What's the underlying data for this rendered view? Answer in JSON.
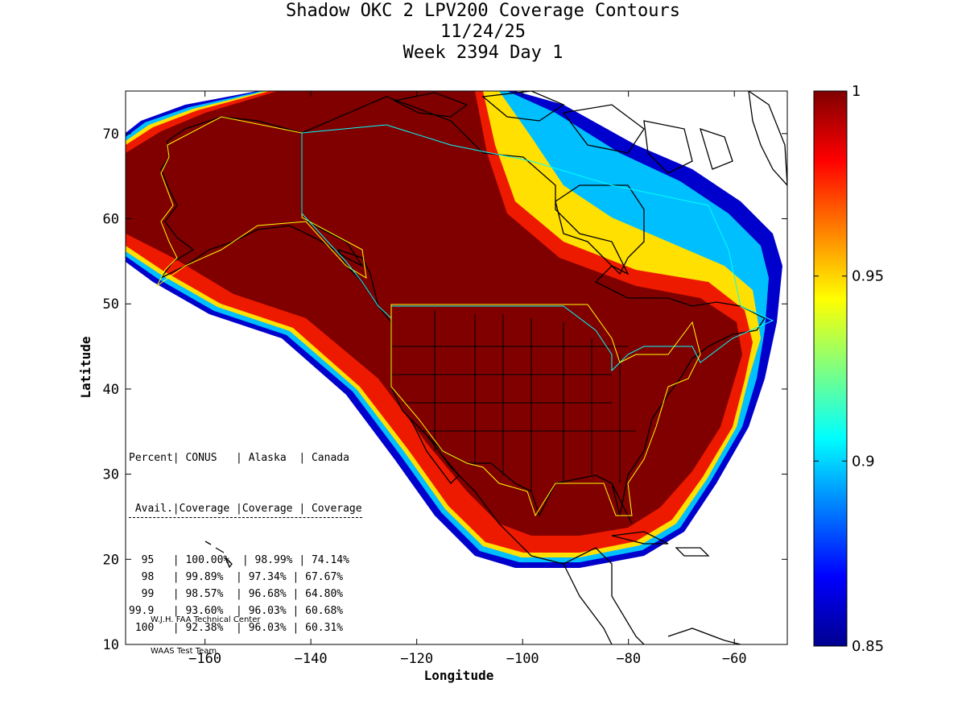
{
  "title": {
    "line1": "Shadow OKC 2 LPV200 Coverage Contours",
    "line2": "11/24/25",
    "line3": "Week 2394 Day 1"
  },
  "axes": {
    "xlabel": "Longitude",
    "ylabel": "Latitude",
    "xlim": [
      -175,
      -50
    ],
    "ylim": [
      10,
      75
    ],
    "xticks": [
      -160,
      -140,
      -120,
      -100,
      -80,
      -60
    ],
    "yticks": [
      10,
      20,
      30,
      40,
      50,
      60,
      70
    ]
  },
  "colorbar": {
    "min": 0.85,
    "max": 1,
    "ticks": [
      "1",
      "0.95",
      "0.9",
      "0.85"
    ],
    "colormap": "jet"
  },
  "table": {
    "header1": "Percent| CONUS   | Alaska  | Canada",
    "header2": " Avail.|Coverage |Coverage | Coverage",
    "rows": [
      "  95   | 100.00%  | 98.99% | 74.14%",
      "  98   | 99.89%  | 97.34% | 67.67%",
      "  99   | 98.57%  | 96.68% | 64.80%",
      "99.9   | 93.60%  | 96.03% | 60.68%",
      " 100   | 92.38%  | 96.03% | 60.31%"
    ]
  },
  "credit": {
    "line1": "W.J.H. FAA Technical Center",
    "line2": "WAAS Test Team"
  },
  "colors": {
    "full_coverage": "#800000",
    "boundary_yellow": "#ffff00",
    "boundary_cyan": "#00ffff",
    "outline": "#000000"
  }
}
